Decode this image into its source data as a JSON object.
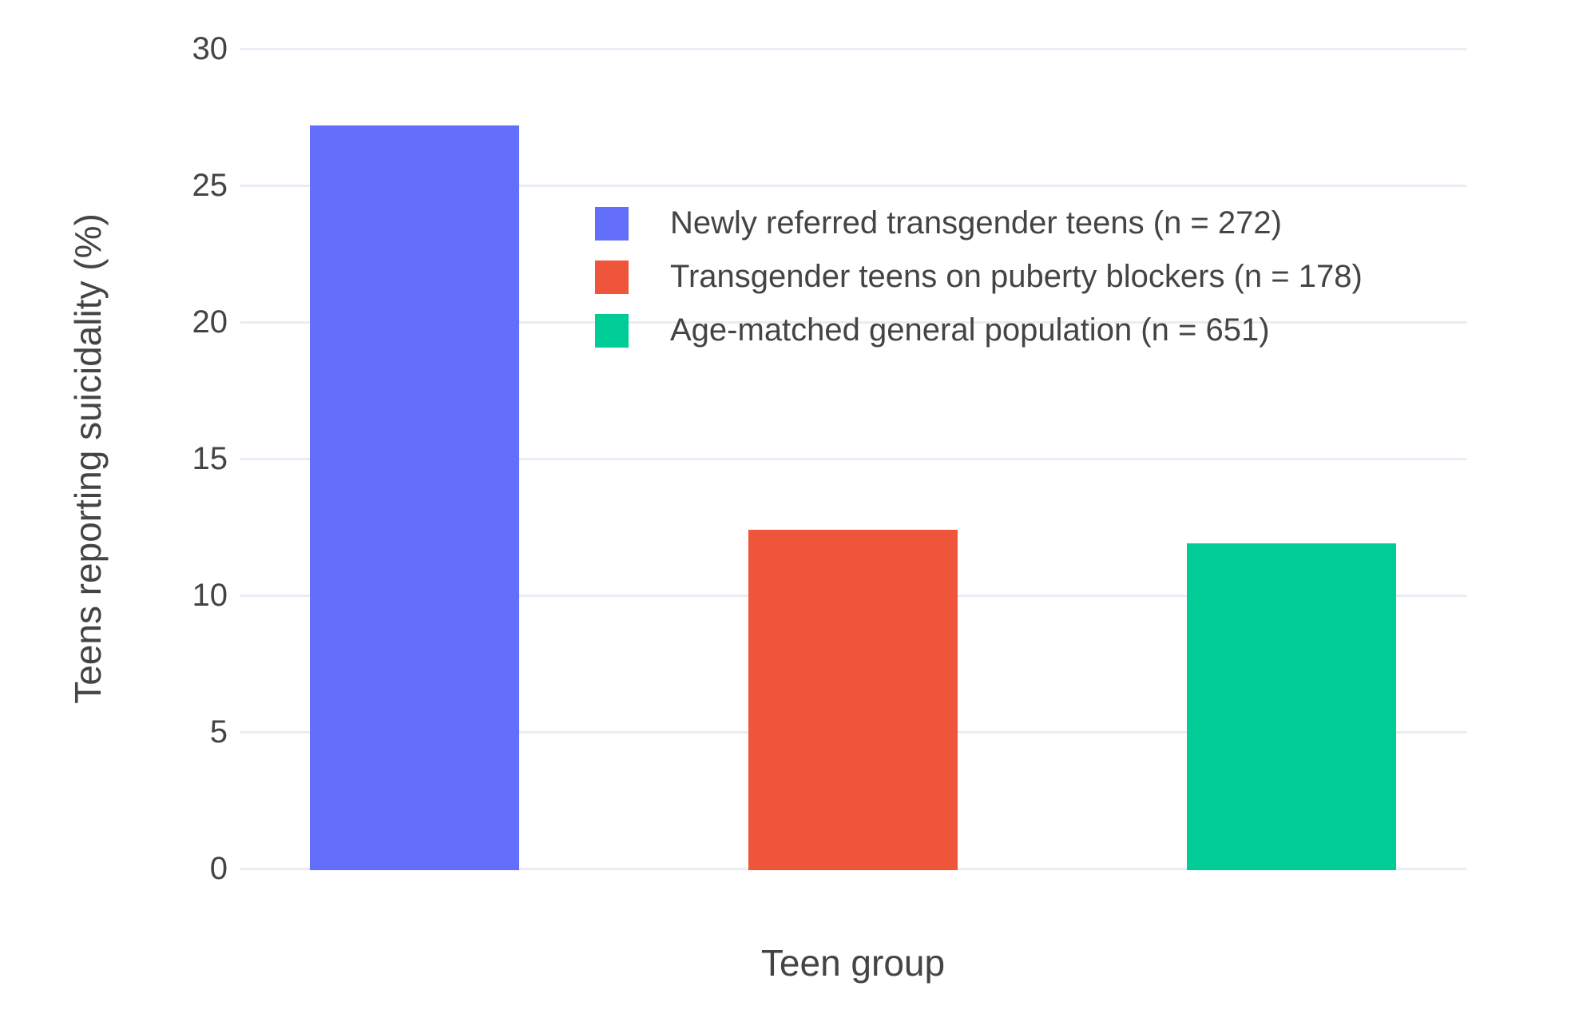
{
  "chart_data": {
    "type": "bar",
    "title": "",
    "xlabel": "Teen group",
    "ylabel": "Teens reporting suicidality (%)",
    "ylim": [
      0,
      30
    ],
    "yticks": [
      0,
      5,
      10,
      15,
      20,
      25,
      30
    ],
    "grid": true,
    "legend_position": "inside-top-center",
    "bars": [
      {
        "label": "Newly referred transgender teens (n = 272)",
        "value": 27.2,
        "color": "#636efa"
      },
      {
        "label": "Transgender teens on puberty blockers (n = 178)",
        "value": 12.4,
        "color": "#ef553b"
      },
      {
        "label": "Age-matched general population (n = 651)",
        "value": 11.9,
        "color": "#00cc96"
      }
    ],
    "colors": {
      "text": "#444444",
      "grid": "#e8edf6",
      "background": "#ffffff"
    }
  }
}
